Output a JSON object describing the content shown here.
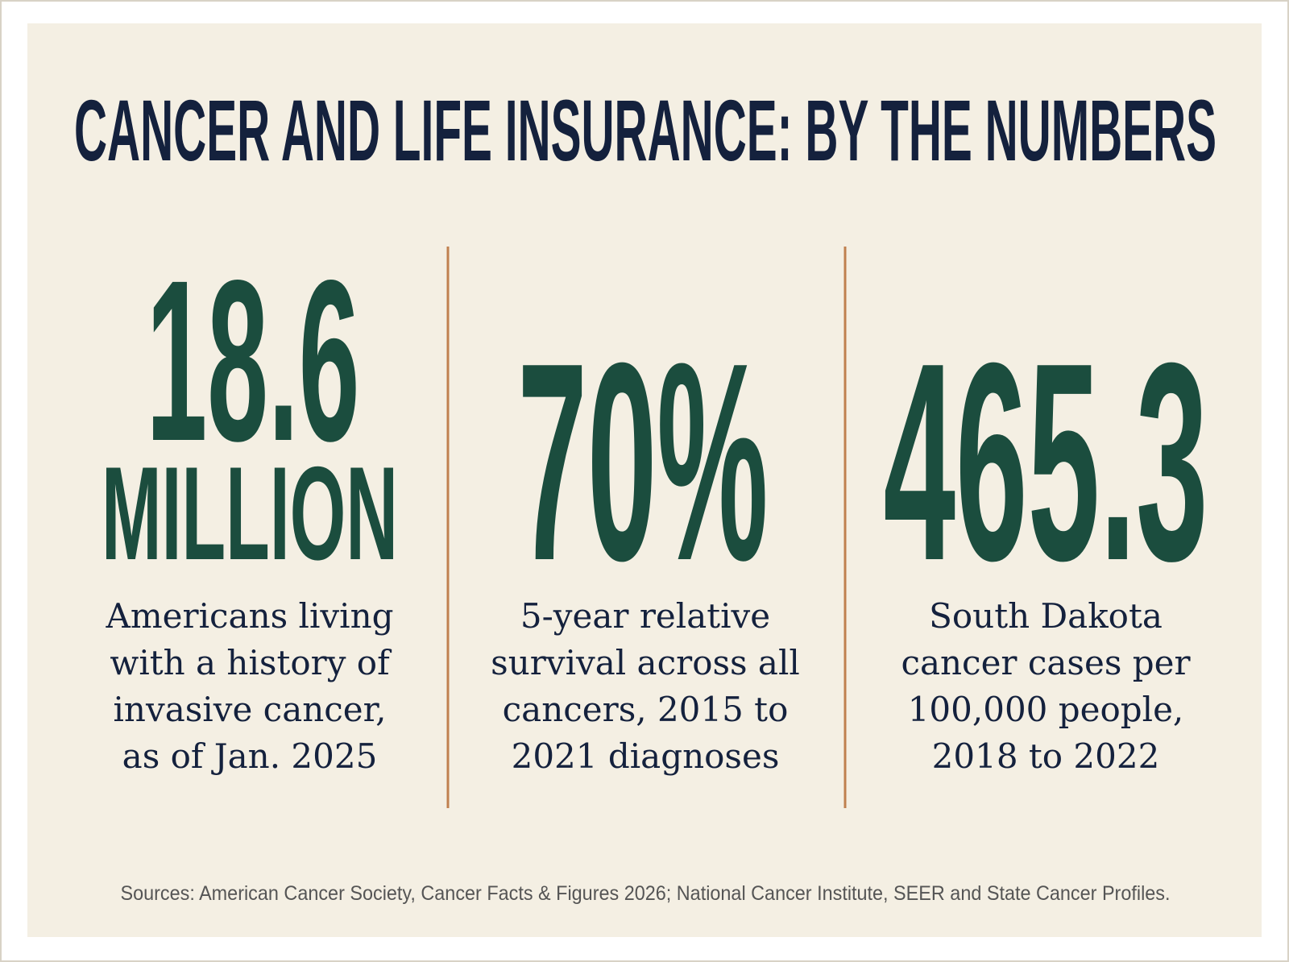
{
  "title": "CANCER AND LIFE INSURANCE: BY THE NUMBERS",
  "stats": [
    {
      "number": "18.6",
      "unit": "MILLION",
      "description": [
        "Americans living",
        "with a history of",
        "invasive cancer,",
        "as of Jan. 2025"
      ]
    },
    {
      "number": "70%",
      "description": [
        "5-year relative",
        "survival across all",
        "cancers, 2015 to",
        "2021 diagnoses"
      ]
    },
    {
      "number": "465.3",
      "description": [
        "South Dakota",
        "cancer cases per",
        "100,000 people,",
        "2018 to 2022"
      ]
    }
  ],
  "sources": "Sources: American Cancer Society, Cancer Facts & Figures 2026; National Cancer Institute, SEER and State Cancer Profiles."
}
